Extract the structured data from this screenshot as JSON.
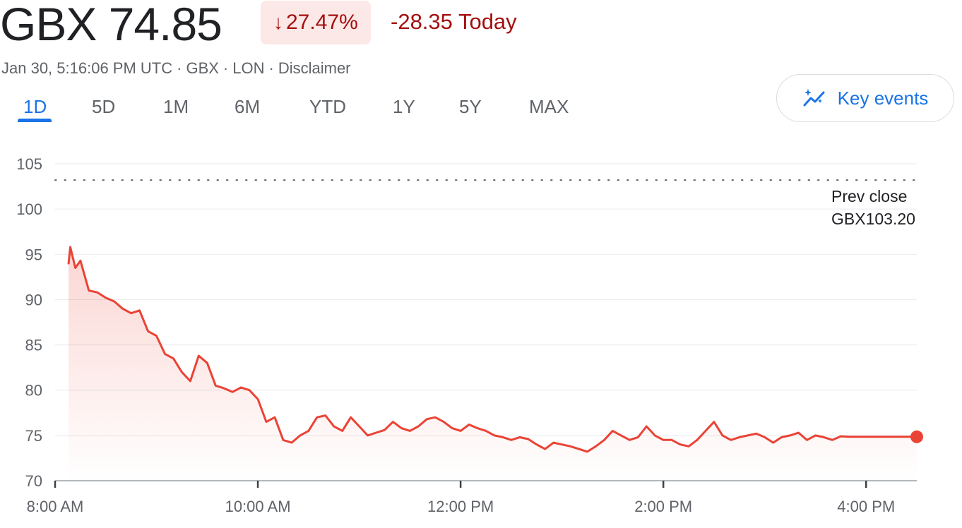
{
  "header": {
    "price": "GBX 74.85",
    "change_arrow": "↓",
    "change_percent": "27.47%",
    "change_today": "-28.35 Today",
    "meta": {
      "date": "Jan 30, 5:16:06 PM UTC",
      "currency": "GBX",
      "exchange": "LON",
      "disclaimer": "Disclaimer",
      "separator": "·"
    }
  },
  "tabs": [
    {
      "label": "1D",
      "active": true
    },
    {
      "label": "5D",
      "active": false
    },
    {
      "label": "1M",
      "active": false
    },
    {
      "label": "6M",
      "active": false
    },
    {
      "label": "YTD",
      "active": false
    },
    {
      "label": "1Y",
      "active": false
    },
    {
      "label": "5Y",
      "active": false
    },
    {
      "label": "MAX",
      "active": false
    }
  ],
  "key_events": {
    "label": "Key events",
    "icon": "sparkle-trend-icon"
  },
  "colors": {
    "negative": "#a50e0e",
    "line": "#ea4335",
    "accent": "#1a73e8",
    "grid": "#e8eaed"
  },
  "chart_data": {
    "type": "line",
    "title": "",
    "xlabel": "",
    "ylabel": "",
    "ylim": [
      70,
      105
    ],
    "y_ticks": [
      70,
      75,
      80,
      85,
      90,
      95,
      100,
      105
    ],
    "y_tick_labels": [
      "70",
      "75",
      "80",
      "85",
      "90",
      "95",
      "100",
      "105"
    ],
    "x_ticks": [
      "8:00 AM",
      "10:00 AM",
      "12:00 PM",
      "2:00 PM",
      "4:00 PM"
    ],
    "x_range": [
      "8:00 AM",
      "4:30 PM"
    ],
    "grid": true,
    "prev_close": {
      "label": "Prev close",
      "value_label": "GBX103.20",
      "value": 103.2
    },
    "series": [
      {
        "x": [
          "8:08 AM",
          "8:09 AM",
          "8:12 AM",
          "8:15 AM",
          "8:20 AM",
          "8:25 AM",
          "8:30 AM",
          "8:35 AM",
          "8:40 AM",
          "8:45 AM",
          "8:50 AM",
          "8:55 AM",
          "9:00 AM",
          "9:05 AM",
          "9:10 AM",
          "9:15 AM",
          "9:20 AM",
          "9:25 AM",
          "9:30 AM",
          "9:35 AM",
          "9:40 AM",
          "9:45 AM",
          "9:50 AM",
          "9:55 AM",
          "10:00 AM",
          "10:05 AM",
          "10:10 AM",
          "10:15 AM",
          "10:20 AM",
          "10:25 AM",
          "10:30 AM",
          "10:35 AM",
          "10:40 AM",
          "10:45 AM",
          "10:50 AM",
          "10:55 AM",
          "11:00 AM",
          "11:05 AM",
          "11:10 AM",
          "11:15 AM",
          "11:20 AM",
          "11:25 AM",
          "11:30 AM",
          "11:35 AM",
          "11:40 AM",
          "11:45 AM",
          "11:50 AM",
          "11:55 AM",
          "12:00 PM",
          "12:05 PM",
          "12:10 PM",
          "12:15 PM",
          "12:20 PM",
          "12:25 PM",
          "12:30 PM",
          "12:35 PM",
          "12:40 PM",
          "12:45 PM",
          "12:50 PM",
          "12:55 PM",
          "1:00 PM",
          "1:05 PM",
          "1:10 PM",
          "1:15 PM",
          "1:20 PM",
          "1:25 PM",
          "1:30 PM",
          "1:35 PM",
          "1:40 PM",
          "1:45 PM",
          "1:50 PM",
          "1:55 PM",
          "2:00 PM",
          "2:05 PM",
          "2:10 PM",
          "2:15 PM",
          "2:20 PM",
          "2:25 PM",
          "2:30 PM",
          "2:35 PM",
          "2:40 PM",
          "2:45 PM",
          "2:50 PM",
          "2:55 PM",
          "3:00 PM",
          "3:05 PM",
          "3:10 PM",
          "3:15 PM",
          "3:20 PM",
          "3:25 PM",
          "3:30 PM",
          "3:35 PM",
          "3:40 PM",
          "3:45 PM",
          "3:50 PM",
          "3:55 PM",
          "4:00 PM",
          "4:05 PM",
          "4:10 PM",
          "4:15 PM",
          "4:20 PM",
          "4:25 PM",
          "4:30 PM"
        ],
        "values": [
          94.0,
          95.8,
          93.5,
          94.3,
          91.0,
          90.8,
          90.2,
          89.8,
          89.0,
          88.5,
          88.8,
          86.5,
          86.0,
          84.0,
          83.5,
          82.0,
          81.0,
          83.8,
          83.0,
          80.5,
          80.2,
          79.8,
          80.3,
          80.0,
          79.0,
          76.5,
          77.0,
          74.5,
          74.2,
          75.0,
          75.5,
          77.0,
          77.2,
          76.0,
          75.5,
          77.0,
          76.0,
          75.0,
          75.3,
          75.6,
          76.5,
          75.8,
          75.5,
          76.0,
          76.8,
          77.0,
          76.5,
          75.8,
          75.5,
          76.2,
          75.8,
          75.5,
          75.0,
          74.8,
          74.5,
          74.8,
          74.6,
          74.0,
          73.5,
          74.2,
          74.0,
          73.8,
          73.5,
          73.2,
          73.8,
          74.5,
          75.5,
          75.0,
          74.5,
          74.8,
          76.0,
          75.0,
          74.5,
          74.5,
          74.0,
          73.8,
          74.5,
          75.5,
          76.5,
          75.0,
          74.5,
          74.8,
          75.0,
          75.2,
          74.8,
          74.2,
          74.8,
          75.0,
          75.3,
          74.5,
          75.0,
          74.8,
          74.5,
          74.9,
          74.85,
          74.85,
          74.85,
          74.85,
          74.85,
          74.85,
          74.85,
          74.85,
          74.85
        ]
      }
    ]
  }
}
